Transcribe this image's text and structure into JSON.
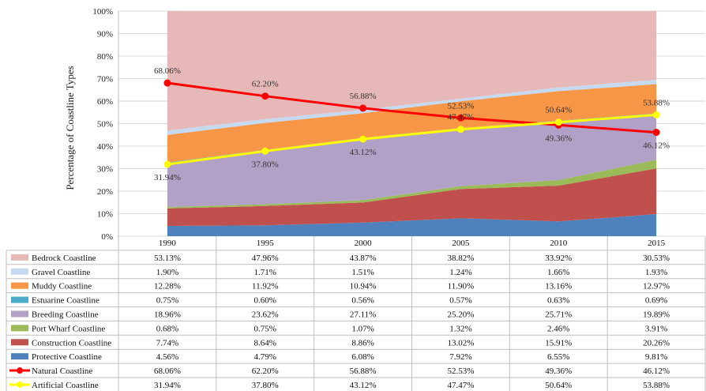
{
  "chart_data": {
    "type": "area",
    "ylabel": "Percentage of Coastline Types",
    "y_ticks": [
      "0%",
      "10%",
      "20%",
      "30%",
      "40%",
      "50%",
      "60%",
      "70%",
      "80%",
      "90%",
      "100%"
    ],
    "ylim": [
      0,
      100
    ],
    "categories": [
      "1990",
      "1995",
      "2000",
      "2005",
      "2010",
      "2015"
    ],
    "stacked_series": [
      {
        "name": "Protective Coastline",
        "color": "#4f81bd",
        "values": [
          4.56,
          4.79,
          6.08,
          7.92,
          6.55,
          9.81
        ],
        "labels": [
          "4.56%",
          "4.79%",
          "6.08%",
          "7.92%",
          "6.55%",
          "9.81%"
        ]
      },
      {
        "name": "Construction Coastline",
        "color": "#c0504d",
        "values": [
          7.74,
          8.64,
          8.86,
          13.02,
          15.91,
          20.26
        ],
        "labels": [
          "7.74%",
          "8.64%",
          "8.86%",
          "13.02%",
          "15.91%",
          "20.26%"
        ]
      },
      {
        "name": "Port Wharf Coastline",
        "color": "#9bbb59",
        "values": [
          0.68,
          0.75,
          1.07,
          1.32,
          2.46,
          3.91
        ],
        "labels": [
          "0.68%",
          "0.75%",
          "1.07%",
          "1.32%",
          "2.46%",
          "3.91%"
        ]
      },
      {
        "name": "Breeding Coastline",
        "color": "#b2a1c7",
        "values": [
          18.96,
          23.62,
          27.11,
          25.2,
          25.71,
          19.89
        ],
        "labels": [
          "18.96%",
          "23.62%",
          "27.11%",
          "25.20%",
          "25.71%",
          "19.89%"
        ]
      },
      {
        "name": "Estuarine Coastline",
        "color": "#4bacc6",
        "values": [
          0.75,
          0.6,
          0.56,
          0.57,
          0.63,
          0.69
        ],
        "labels": [
          "0.75%",
          "0.60%",
          "0.56%",
          "0.57%",
          "0.63%",
          "0.69%"
        ]
      },
      {
        "name": "Muddy Coastline",
        "color": "#f79646",
        "values": [
          12.28,
          11.92,
          10.94,
          11.9,
          13.16,
          12.97
        ],
        "labels": [
          "12.28%",
          "11.92%",
          "10.94%",
          "11.90%",
          "13.16%",
          "12.97%"
        ]
      },
      {
        "name": "Gravel Coastline",
        "color": "#c5d9f1",
        "values": [
          1.9,
          1.71,
          1.51,
          1.24,
          1.66,
          1.93
        ],
        "labels": [
          "1.90%",
          "1.71%",
          "1.51%",
          "1.24%",
          "1.66%",
          "1.93%"
        ]
      },
      {
        "name": "Bedrock Coastline",
        "color": "#e6b9b8",
        "values": [
          53.13,
          47.96,
          43.87,
          38.82,
          33.92,
          30.53
        ],
        "labels": [
          "53.13%",
          "47.96%",
          "43.87%",
          "38.82%",
          "33.92%",
          "30.53%"
        ]
      }
    ],
    "line_series": [
      {
        "name": "Natural Coastline",
        "color": "#ff0000",
        "values": [
          68.06,
          62.2,
          56.88,
          52.53,
          49.36,
          46.12
        ],
        "labels": [
          "68.06%",
          "62.20%",
          "56.88%",
          "52.53%",
          "49.36%",
          "46.12%"
        ],
        "label_side": [
          "above",
          "above",
          "above",
          "above",
          "below",
          "below"
        ]
      },
      {
        "name": "Artificial Coastline",
        "color": "#ffff00",
        "values": [
          31.94,
          37.8,
          43.12,
          47.47,
          50.64,
          53.88
        ],
        "labels": [
          "31.94%",
          "37.80%",
          "43.12%",
          "47.47%",
          "50.64%",
          "53.88%"
        ],
        "label_side": [
          "below",
          "below",
          "below",
          "above",
          "above",
          "above"
        ]
      }
    ],
    "table_rows": [
      "Bedrock Coastline",
      "Gravel Coastline",
      "Muddy Coastline",
      "Estuarine Coastline",
      "Breeding Coastline",
      "Port Wharf Coastline",
      "Construction Coastline",
      "Protective Coastline",
      "Natural Coastline",
      "Artificial Coastline"
    ],
    "grid": true
  }
}
